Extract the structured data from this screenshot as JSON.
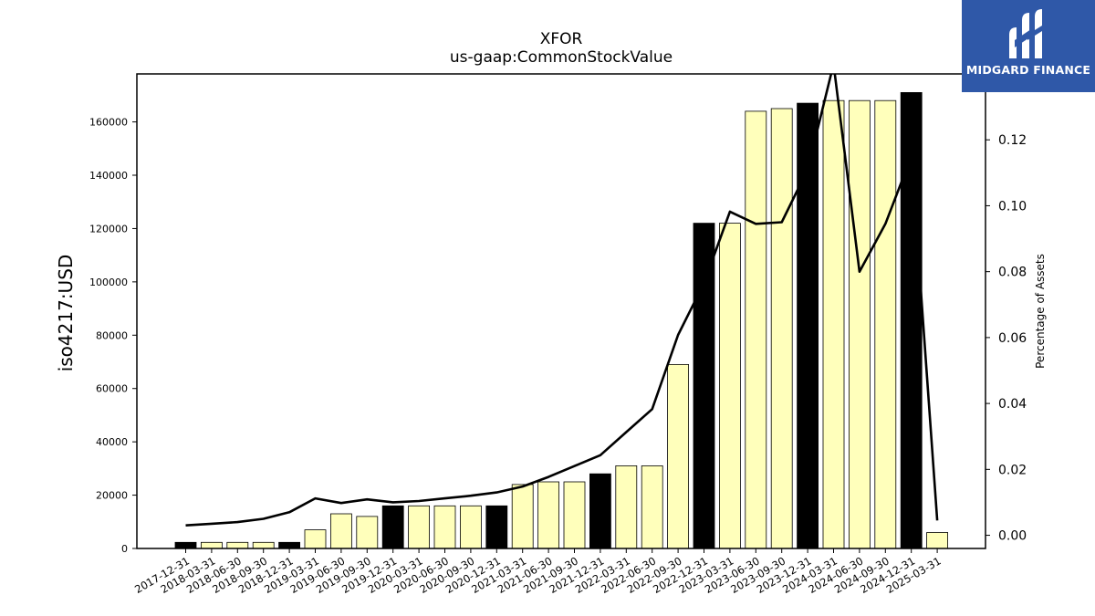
{
  "brand": {
    "name": "MIDGARD FINANCE",
    "bg_color": "#2f58a8"
  },
  "chart_data": {
    "type": "bar",
    "title": "XFOR",
    "subtitle": "us-gaap:CommonStockValue",
    "ylabel": "iso4217:USD",
    "y2label": "Percentage of Assets",
    "ylim": [
      0,
      178000
    ],
    "y2lim": [
      -0.004,
      0.14
    ],
    "yticks": [
      0,
      20000,
      40000,
      60000,
      80000,
      100000,
      120000,
      140000,
      160000
    ],
    "y2ticks": [
      "0.00",
      "0.02",
      "0.04",
      "0.06",
      "0.08",
      "0.10",
      "0.12"
    ],
    "categories": [
      "2017-12-31",
      "2018-03-31",
      "2018-06-30",
      "2018-09-30",
      "2018-12-31",
      "2019-03-31",
      "2019-06-30",
      "2019-09-30",
      "2019-12-31",
      "2020-03-31",
      "2020-06-30",
      "2020-09-30",
      "2020-12-31",
      "2021-03-31",
      "2021-06-30",
      "2021-09-30",
      "2021-12-31",
      "2022-03-31",
      "2022-06-30",
      "2022-09-30",
      "2022-12-31",
      "2023-03-31",
      "2023-06-30",
      "2023-09-30",
      "2023-12-31",
      "2024-03-31",
      "2024-06-30",
      "2024-09-30",
      "2024-12-31",
      "2025-03-31"
    ],
    "series": [
      {
        "values": [
          2300,
          2300,
          2300,
          2300,
          2300,
          7000,
          13000,
          12000,
          16000,
          16000,
          16000,
          16000,
          16000,
          24000,
          25000,
          25000,
          28000,
          31000,
          31000,
          69000,
          122000,
          122000,
          164000,
          165000,
          167000,
          168000,
          168000,
          168000,
          171000,
          6000
        ],
        "annual_flags": [
          1,
          0,
          0,
          0,
          1,
          0,
          0,
          0,
          1,
          0,
          0,
          0,
          1,
          0,
          0,
          0,
          1,
          0,
          0,
          0,
          1,
          0,
          0,
          0,
          1,
          0,
          0,
          0,
          1,
          0
        ],
        "annual_color": "#000000",
        "quarter_color": "#ffffbb"
      },
      {
        "axis": "right",
        "color": "#000000",
        "values": [
          0.003,
          0.0035,
          0.004,
          0.005,
          0.007,
          0.0112,
          0.0098,
          0.0109,
          0.01,
          0.0104,
          0.0112,
          0.012,
          0.013,
          0.0148,
          0.0177,
          0.021,
          0.0243,
          0.0313,
          0.0383,
          0.0608,
          0.0765,
          0.0982,
          0.0945,
          0.095,
          0.111,
          0.143,
          0.08,
          0.0945,
          0.115,
          0.0045
        ]
      }
    ],
    "grid": false,
    "legend": "none"
  }
}
